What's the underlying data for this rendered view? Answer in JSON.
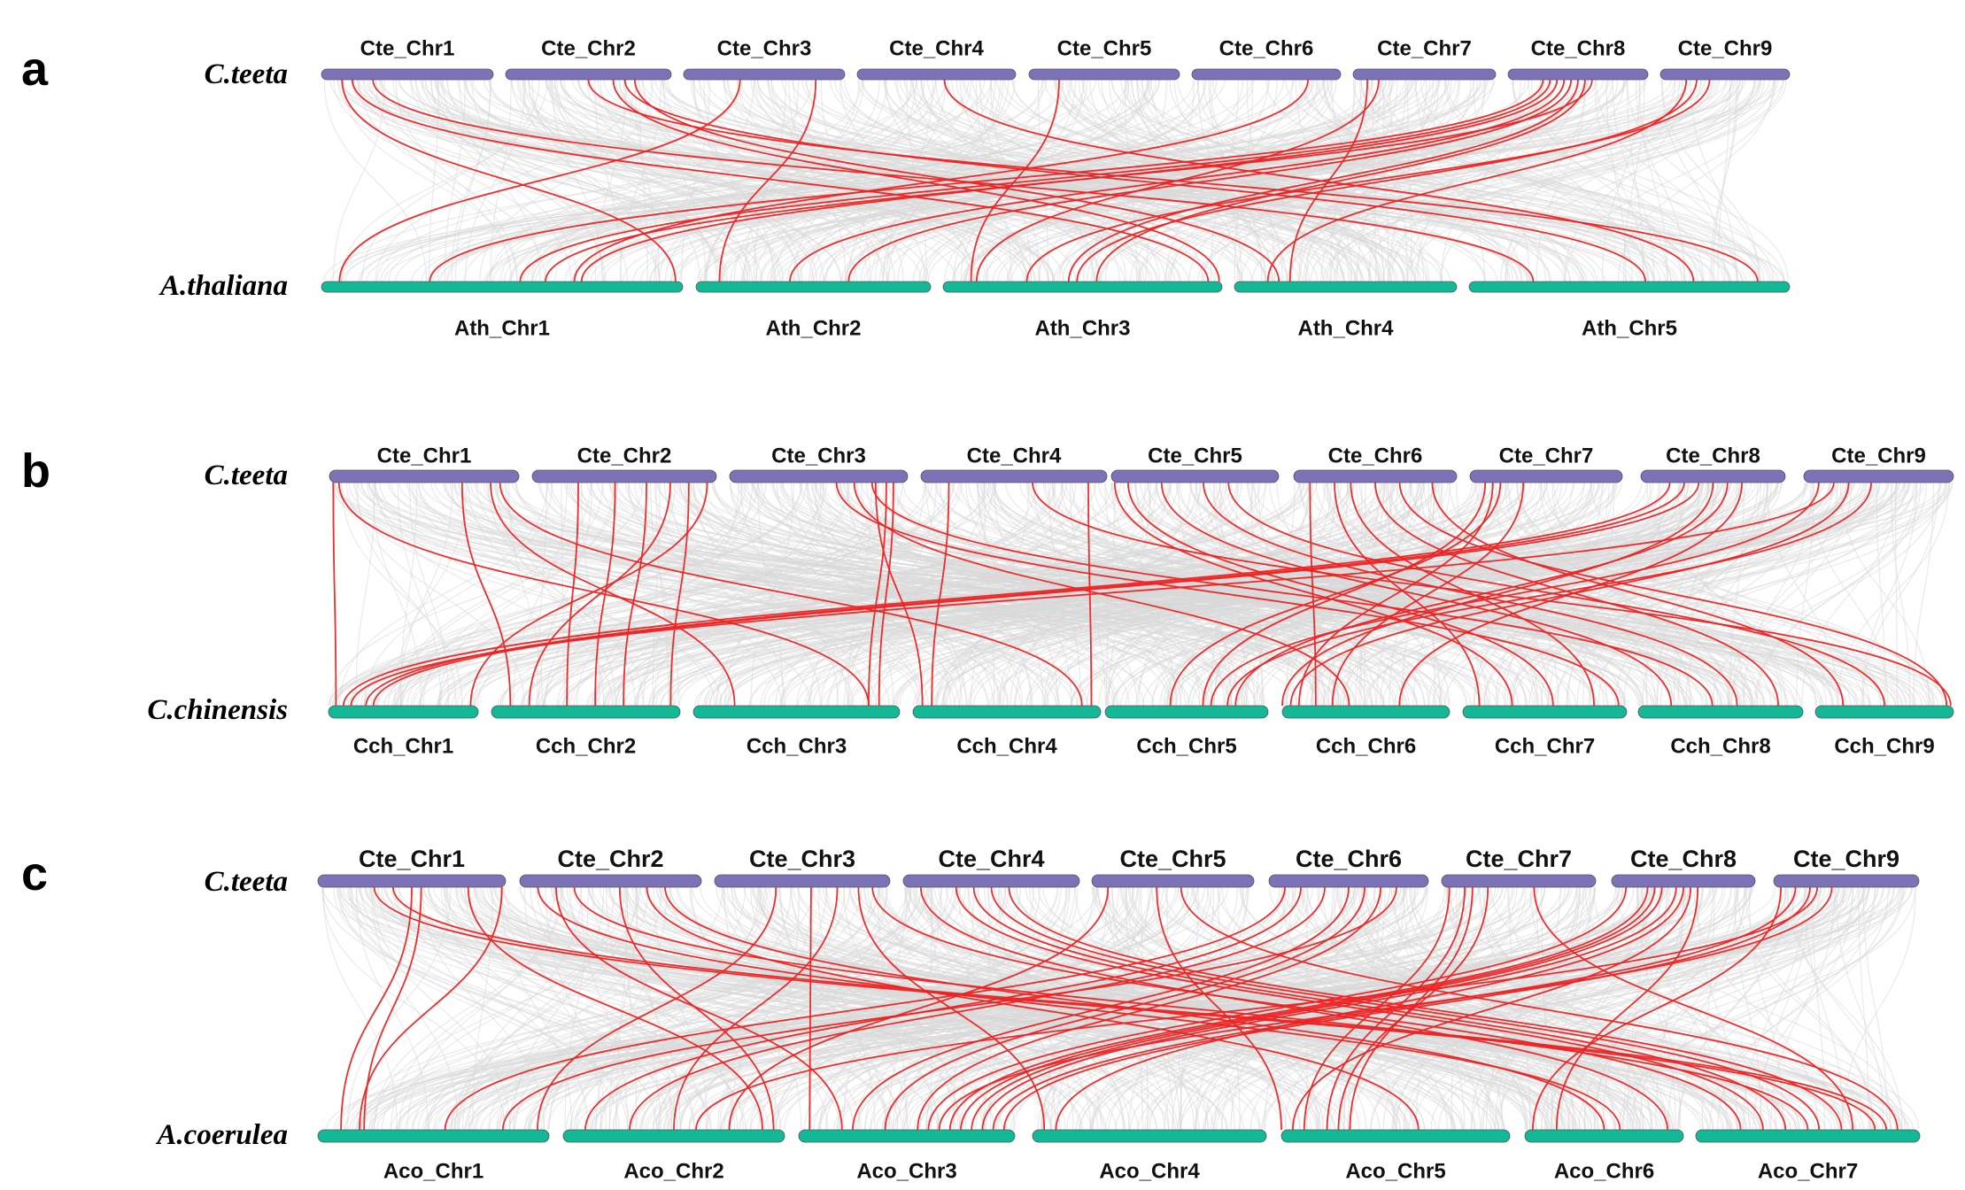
{
  "colors": {
    "top_chr": "#7b72b8",
    "bottom_chr": "#13b897",
    "syntenic_link": "#e8e8e8",
    "highlight_link": "#ee2222"
  },
  "panels": [
    {
      "label": "a",
      "top_species": "C.teeta",
      "bottom_species": "A.thaliana",
      "top_chrs": [
        "Cte_Chr1",
        "Cte_Chr2",
        "Cte_Chr3",
        "Cte_Chr4",
        "Cte_Chr5",
        "Cte_Chr6",
        "Cte_Chr7",
        "Cte_Chr8",
        "Cte_Chr9"
      ],
      "bottom_chrs": [
        "Ath_Chr1",
        "Ath_Chr2",
        "Ath_Chr3",
        "Ath_Chr4",
        "Ath_Chr5"
      ]
    },
    {
      "label": "b",
      "top_species": "C.teeta",
      "bottom_species": "C.chinensis",
      "top_chrs": [
        "Cte_Chr1",
        "Cte_Chr2",
        "Cte_Chr3",
        "Cte_Chr4",
        "Cte_Chr5",
        "Cte_Chr6",
        "Cte_Chr7",
        "Cte_Chr8",
        "Cte_Chr9"
      ],
      "bottom_chrs": [
        "Cch_Chr1",
        "Cch_Chr2",
        "Cch_Chr3",
        "Cch_Chr4",
        "Cch_Chr5",
        "Cch_Chr6",
        "Cch_Chr7",
        "Cch_Chr8",
        "Cch_Chr9"
      ]
    },
    {
      "label": "c",
      "top_species": "C.teeta",
      "bottom_species": "A.coerulea",
      "top_chrs": [
        "Cte_Chr1",
        "Cte_Chr2",
        "Cte_Chr3",
        "Cte_Chr4",
        "Cte_Chr5",
        "Cte_Chr6",
        "Cte_Chr7",
        "Cte_Chr8",
        "Cte_Chr9"
      ],
      "bottom_chrs": [
        "Aco_Chr1",
        "Aco_Chr2",
        "Aco_Chr3",
        "Aco_Chr4",
        "Aco_Chr5",
        "Aco_Chr6",
        "Aco_Chr7"
      ]
    }
  ]
}
